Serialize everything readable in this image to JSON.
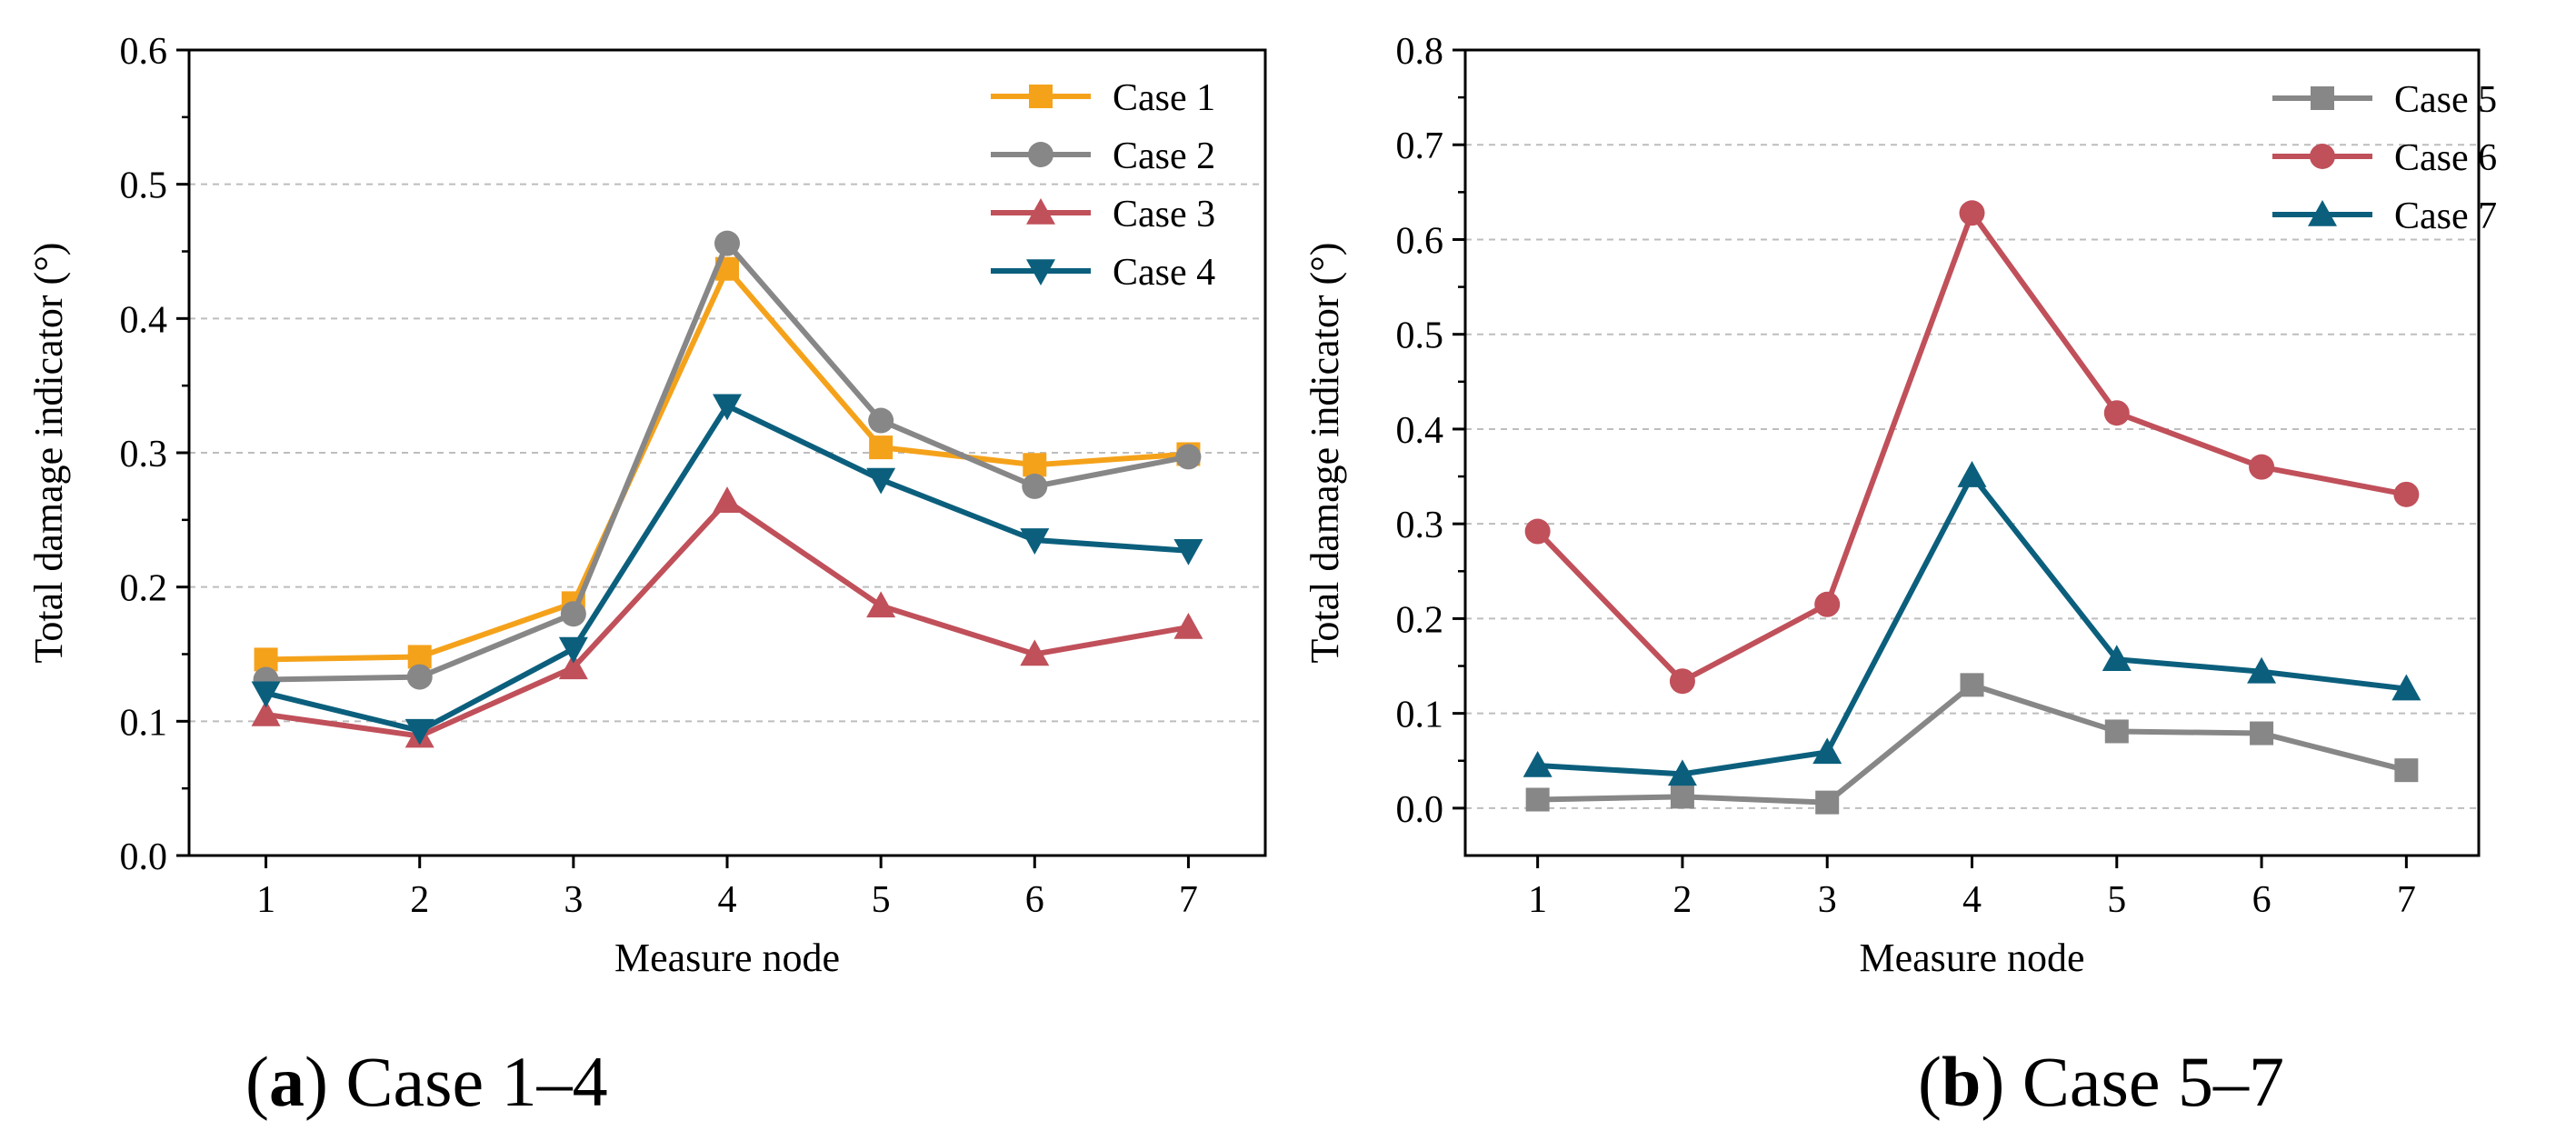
{
  "figure": {
    "captions": [
      {
        "letter": "a",
        "text": "Case 1–4"
      },
      {
        "letter": "b",
        "text": "Case 5–7"
      }
    ]
  },
  "chart_data": [
    {
      "type": "line",
      "panel": "a",
      "xlabel": "Measure node",
      "ylabel": "Total damage indicator (°)",
      "x": [
        1,
        2,
        3,
        4,
        5,
        6,
        7
      ],
      "xlim": [
        0.5,
        7.5
      ],
      "ylim": [
        0.0,
        0.6
      ],
      "yticks": [
        0.0,
        0.1,
        0.2,
        0.3,
        0.4,
        0.5,
        0.6
      ],
      "ytick_labels": [
        "0.0",
        "0.1",
        "0.2",
        "0.3",
        "0.4",
        "0.5",
        "0.6"
      ],
      "xtick_labels": [
        "1",
        "2",
        "3",
        "4",
        "5",
        "6",
        "7"
      ],
      "grid": "horizontal dashed",
      "legend_position": "top-right",
      "series": [
        {
          "name": "Case 1",
          "color": "#F5A21B",
          "marker": "square",
          "values": [
            0.146,
            0.148,
            0.188,
            0.437,
            0.304,
            0.291,
            0.299
          ]
        },
        {
          "name": "Case 2",
          "color": "#878787",
          "marker": "circle",
          "values": [
            0.131,
            0.133,
            0.18,
            0.456,
            0.324,
            0.275,
            0.297
          ]
        },
        {
          "name": "Case 3",
          "color": "#C0505A",
          "marker": "triangle-up",
          "values": [
            0.105,
            0.089,
            0.14,
            0.264,
            0.186,
            0.15,
            0.17
          ]
        },
        {
          "name": "Case 4",
          "color": "#0B5F7D",
          "marker": "triangle-down",
          "values": [
            0.121,
            0.093,
            0.154,
            0.335,
            0.28,
            0.235,
            0.227
          ]
        }
      ]
    },
    {
      "type": "line",
      "panel": "b",
      "xlabel": "Measure node",
      "ylabel": "Total damage indicator (°)",
      "x": [
        1,
        2,
        3,
        4,
        5,
        6,
        7
      ],
      "xlim": [
        0.5,
        7.5
      ],
      "ylim": [
        -0.05,
        0.8
      ],
      "yticks": [
        0.0,
        0.1,
        0.2,
        0.3,
        0.4,
        0.5,
        0.6,
        0.7,
        0.8
      ],
      "ytick_labels": [
        "0.0",
        "0.1",
        "0.2",
        "0.3",
        "0.4",
        "0.5",
        "0.6",
        "0.7",
        "0.8"
      ],
      "xtick_labels": [
        "1",
        "2",
        "3",
        "4",
        "5",
        "6",
        "7"
      ],
      "grid": "horizontal dashed",
      "legend_position": "top-right",
      "series": [
        {
          "name": "Case 5",
          "color": "#878787",
          "marker": "square",
          "values": [
            0.009,
            0.012,
            0.006,
            0.13,
            0.081,
            0.079,
            0.04
          ]
        },
        {
          "name": "Case 6",
          "color": "#C0505A",
          "marker": "circle",
          "values": [
            0.292,
            0.134,
            0.215,
            0.628,
            0.417,
            0.36,
            0.331
          ]
        },
        {
          "name": "Case 7",
          "color": "#0B5F7D",
          "marker": "triangle-up",
          "values": [
            0.045,
            0.036,
            0.059,
            0.351,
            0.157,
            0.144,
            0.126
          ]
        }
      ]
    }
  ]
}
